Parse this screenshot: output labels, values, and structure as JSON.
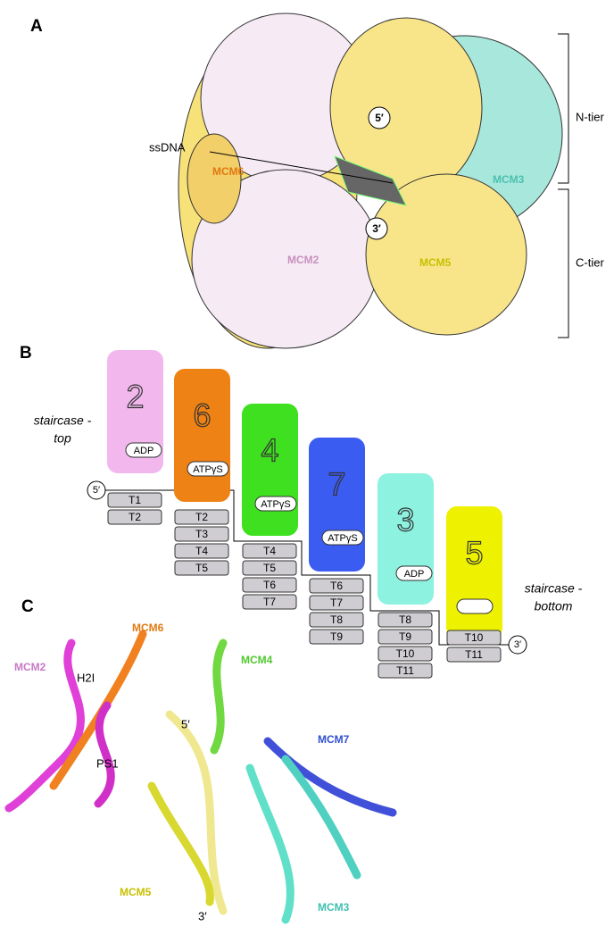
{
  "panel_a": {
    "label": "A",
    "ssdna": "ssDNA",
    "subunits": [
      "MCM6",
      "MCM3",
      "MCM2",
      "MCM5"
    ],
    "five_prime": "5′",
    "three_prime": "3′",
    "tiers": [
      "N-tier",
      "C-tier"
    ]
  },
  "panel_b": {
    "label": "B",
    "staircase_top": [
      "staircase -",
      "top"
    ],
    "staircase_bottom": [
      "staircase -",
      "bottom"
    ],
    "five_prime": "5′",
    "three_prime": "3′",
    "subunits": [
      {
        "number": "2",
        "color": "#f2b8ee",
        "nucleotide": "ADP",
        "contacts": [
          "T1",
          "T2"
        ]
      },
      {
        "number": "6",
        "color": "#ef8214",
        "nucleotide": "ATPγS",
        "contacts": [
          "T2",
          "T3",
          "T4",
          "T5"
        ]
      },
      {
        "number": "4",
        "color": "#3fe01f",
        "nucleotide": "ATPγS",
        "contacts": [
          "T4",
          "T5",
          "T6",
          "T7"
        ]
      },
      {
        "number": "7",
        "color": "#3b5cf0",
        "nucleotide": "ATPγS",
        "contacts": [
          "T6",
          "T7",
          "T8",
          "T9"
        ]
      },
      {
        "number": "3",
        "color": "#8ef2e0",
        "nucleotide": "ADP",
        "contacts": [
          "T8",
          "T9",
          "T10",
          "T11"
        ]
      },
      {
        "number": "5",
        "color": "#eef200",
        "contacts": [
          "T10",
          "T11"
        ]
      }
    ]
  },
  "panel_c": {
    "label": "C",
    "labels": [
      "MCM6",
      "MCM4",
      "MCM2",
      "H2I",
      "PS1",
      "5′",
      "MCM7",
      "MCM5",
      "MCM3",
      "3′"
    ]
  }
}
